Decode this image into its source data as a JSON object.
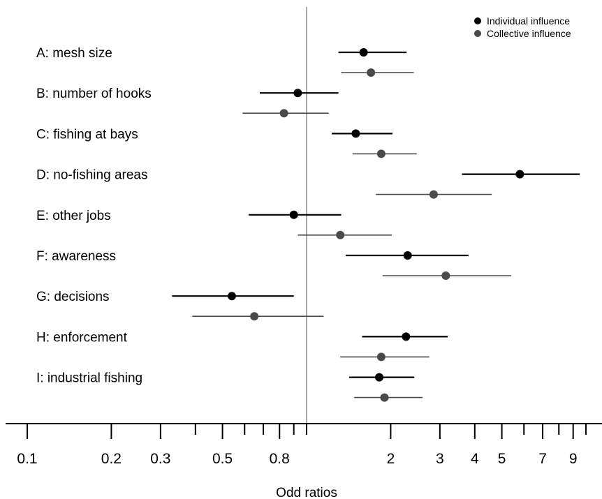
{
  "chart_data": {
    "type": "forest",
    "xlabel": "Odd ratios",
    "x_scale": "log",
    "xlim": [
      0.1,
      10.5
    ],
    "reference_line": 1,
    "grid": false,
    "legend_position": "top-right",
    "x_ticks": [
      0.1,
      0.2,
      0.3,
      0.5,
      0.8,
      2,
      3,
      4,
      5,
      7,
      9
    ],
    "x_tick_labels": [
      "0.1",
      "0.2",
      "0.3",
      "0.5",
      "0.8",
      "2",
      "3",
      "4",
      "5",
      "7",
      "9"
    ],
    "x_minor_ticks": [
      0.4,
      0.6,
      0.7,
      0.9,
      1,
      6,
      8,
      10
    ],
    "categories": [
      "A: mesh size",
      "B: number of hooks",
      "C: fishing at bays",
      "D: no-fishing areas",
      "E: other jobs",
      "F: awareness",
      "G: decisions",
      "H: enforcement",
      "I: industrial fishing"
    ],
    "series": [
      {
        "name": "Individual influence",
        "color": "#000000",
        "estimate": [
          1.6,
          0.93,
          1.5,
          5.8,
          0.9,
          2.3,
          0.54,
          2.27,
          1.82
        ],
        "lower": [
          1.3,
          0.68,
          1.23,
          3.6,
          0.62,
          1.38,
          0.33,
          1.58,
          1.42
        ],
        "upper": [
          2.28,
          1.3,
          2.03,
          9.5,
          1.33,
          3.8,
          0.9,
          3.2,
          2.43
        ]
      },
      {
        "name": "Collective influence",
        "color": "#4a4a4a",
        "estimate": [
          1.7,
          0.83,
          1.85,
          2.85,
          1.32,
          3.15,
          0.65,
          1.85,
          1.9
        ],
        "lower": [
          1.33,
          0.59,
          1.46,
          1.77,
          0.93,
          1.87,
          0.39,
          1.32,
          1.48
        ],
        "upper": [
          2.42,
          1.2,
          2.48,
          4.6,
          2.02,
          5.4,
          1.15,
          2.75,
          2.6
        ]
      }
    ]
  }
}
